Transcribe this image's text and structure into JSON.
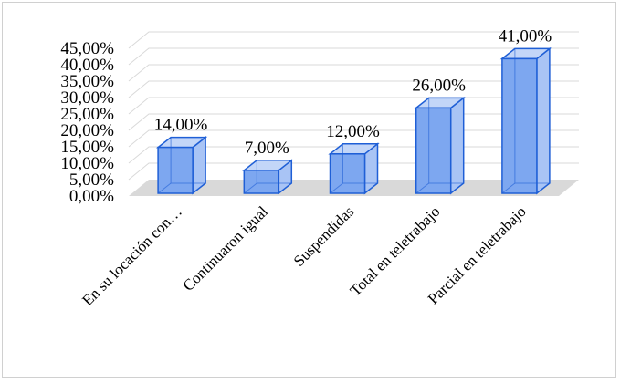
{
  "chart_data": {
    "type": "bar",
    "style": "3d-column",
    "categories": [
      "En su locación con…",
      "Continuaron igual",
      "Suspendidas",
      "Total en teletrabajo",
      "Parcial en teletrabajo"
    ],
    "values": [
      14,
      7,
      12,
      26,
      41
    ],
    "data_labels": [
      "14,00%",
      "7,00%",
      "12,00%",
      "26,00%",
      "41,00%"
    ],
    "y_ticks": [
      "0,00%",
      "5,00%",
      "10,00%",
      "15,00%",
      "20,00%",
      "25,00%",
      "30,00%",
      "35,00%",
      "40,00%",
      "45,00%"
    ],
    "ylim": [
      0,
      45
    ],
    "grid": true,
    "legend": "none",
    "colors": {
      "bar_fill": "#7da7f0",
      "bar_side": "#a9c4f5",
      "bar_top": "#c3d6f8",
      "bar_edge": "#1f5fd6",
      "floor": "#d9d9d9",
      "grid": "#d9d9d9"
    }
  }
}
